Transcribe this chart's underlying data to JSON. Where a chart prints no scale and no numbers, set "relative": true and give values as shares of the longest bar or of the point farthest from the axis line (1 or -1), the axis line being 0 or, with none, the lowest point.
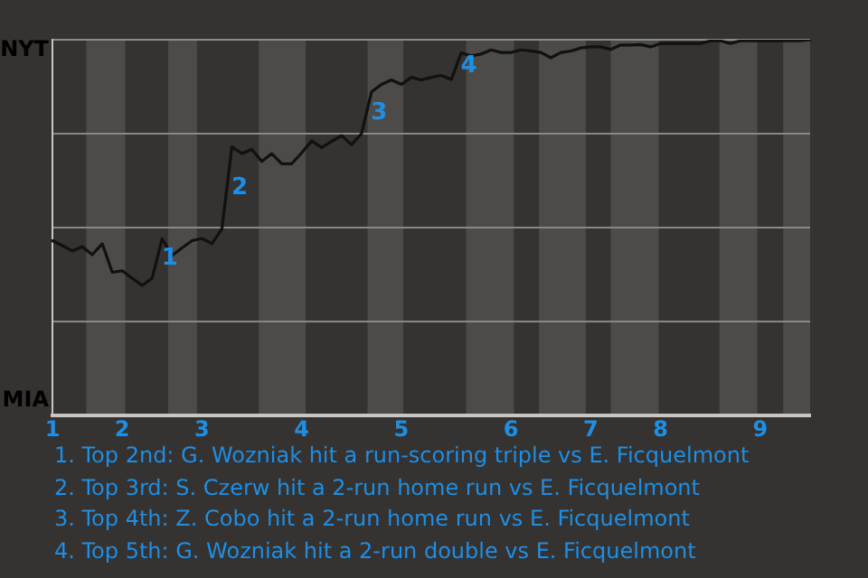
{
  "chart_data": {
    "type": "line",
    "relative": true,
    "categories": [
      "1",
      null,
      null,
      null,
      null,
      null,
      null,
      "2",
      null,
      null,
      null,
      null,
      null,
      null,
      null,
      "3",
      null,
      null,
      null,
      null,
      null,
      null,
      null,
      null,
      null,
      "4",
      null,
      null,
      null,
      null,
      null,
      null,
      null,
      null,
      null,
      "5",
      null,
      null,
      null,
      null,
      null,
      null,
      null,
      null,
      null,
      null,
      "6",
      null,
      null,
      null,
      null,
      null,
      null,
      null,
      "7",
      null,
      null,
      null,
      null,
      null,
      null,
      "8",
      null,
      null,
      null,
      null,
      null,
      null,
      null,
      null,
      null,
      "9",
      null,
      null,
      null,
      null,
      null
    ],
    "series": [
      {
        "color": "#111111",
        "values": [
          0.465,
          0.452,
          0.438,
          0.449,
          0.428,
          0.457,
          0.381,
          0.385,
          0.365,
          0.346,
          0.365,
          0.47,
          0.426,
          0.446,
          0.465,
          0.471,
          0.457,
          0.497,
          0.715,
          0.697,
          0.708,
          0.676,
          0.697,
          0.67,
          0.67,
          0.699,
          0.731,
          0.713,
          0.729,
          0.745,
          0.721,
          0.75,
          0.861,
          0.881,
          0.893,
          0.881,
          0.9,
          0.893,
          0.9,
          0.905,
          0.894,
          0.965,
          0.957,
          0.962,
          0.973,
          0.966,
          0.966,
          0.973,
          0.97,
          0.966,
          0.952,
          0.966,
          0.97,
          0.978,
          0.981,
          0.981,
          0.974,
          0.986,
          0.986,
          0.987,
          0.981,
          0.99,
          0.99,
          0.99,
          0.99,
          0.99,
          0.997,
          0.997,
          0.99,
          0.997,
          0.997,
          0.997,
          0.997,
          0.997,
          0.997,
          0.997,
          1
        ]
      }
    ],
    "grid": "y",
    "marker": "none",
    "line_style": "solid",
    "annotations": [
      "NYT",
      "MIA",
      {
        "text": "1",
        "y": 0.47
      },
      {
        "text": "2",
        "y": 0.715
      },
      {
        "text": "3",
        "y": 0.861
      },
      {
        "text": "4",
        "y": 0.965
      },
      "1. Top 2nd: G. Wozniak hit a run-scoring triple vs E. Ficquelmont",
      "2. Top 3rd: S. Czerw hit a 2-run home run vs E. Ficquelmont",
      "3. Top 4th: Z. Cobo hit a 2-run home run vs E. Ficquelmont",
      "4. Top 5th: G. Wozniak hit a 2-run double vs E. Ficquelmont"
    ]
  }
}
